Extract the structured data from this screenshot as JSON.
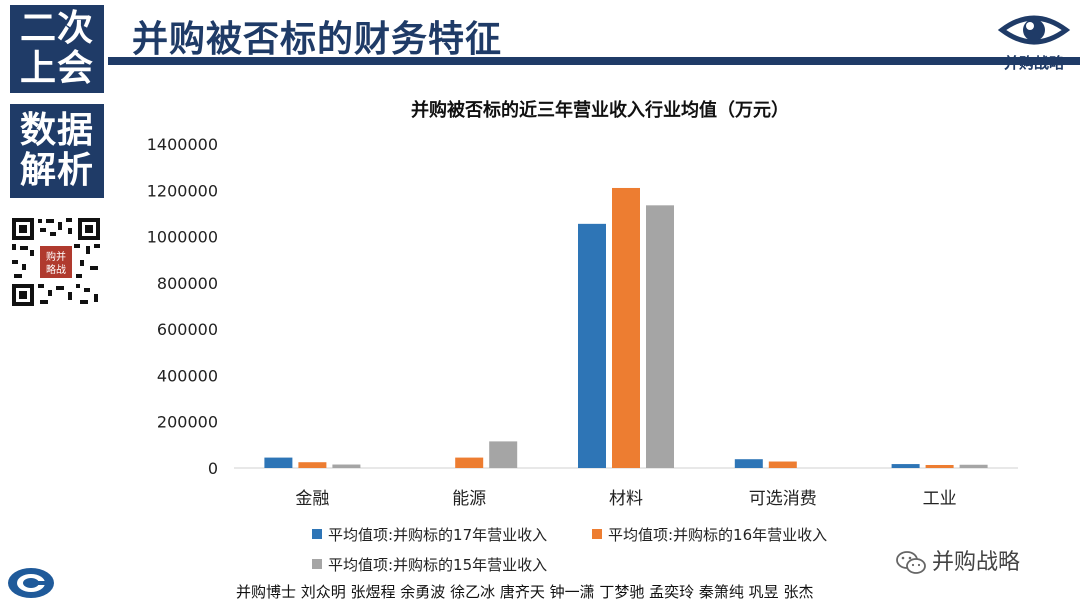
{
  "left_badges": {
    "top": [
      "二次",
      "上会"
    ],
    "bottom": [
      "数据",
      "解析"
    ]
  },
  "header": {
    "title": "并购被否标的财务特征",
    "logo_text": "并购战略"
  },
  "qr_center_text": [
    "购并",
    "略战"
  ],
  "colors": {
    "brand_navy": "#1f3b67",
    "series_17": "#2e75b6",
    "series_16": "#ed7d31",
    "series_15": "#a5a5a5"
  },
  "chart_data": {
    "type": "bar",
    "title": "并购被否标的近三年营业收入行业均值（万元）",
    "categories": [
      "金融",
      "能源",
      "材料",
      "可选消费",
      "工业"
    ],
    "series": [
      {
        "name": "平均值项:并购标的17年营业收入",
        "values": [
          45000,
          0,
          1055000,
          38000,
          17000
        ]
      },
      {
        "name": "平均值项:并购标的16年营业收入",
        "values": [
          25000,
          45000,
          1210000,
          28000,
          13000
        ]
      },
      {
        "name": "平均值项:并购标的15年营业收入",
        "values": [
          15000,
          115000,
          1135000,
          0,
          14000
        ]
      }
    ],
    "y_ticks": [
      "0",
      "200000",
      "400000",
      "600000",
      "800000",
      "1000000",
      "1200000",
      "1400000"
    ],
    "ylim": [
      0,
      1400000
    ],
    "grid": false,
    "legend_position": "bottom"
  },
  "wechat": {
    "name": "并购战略"
  },
  "footer": {
    "text": "并购博士  刘众明 张煜程 余勇波 徐乙冰 唐齐天 钟一潇 丁梦驰 孟奕玲 秦箫纯 巩昱 张杰"
  }
}
